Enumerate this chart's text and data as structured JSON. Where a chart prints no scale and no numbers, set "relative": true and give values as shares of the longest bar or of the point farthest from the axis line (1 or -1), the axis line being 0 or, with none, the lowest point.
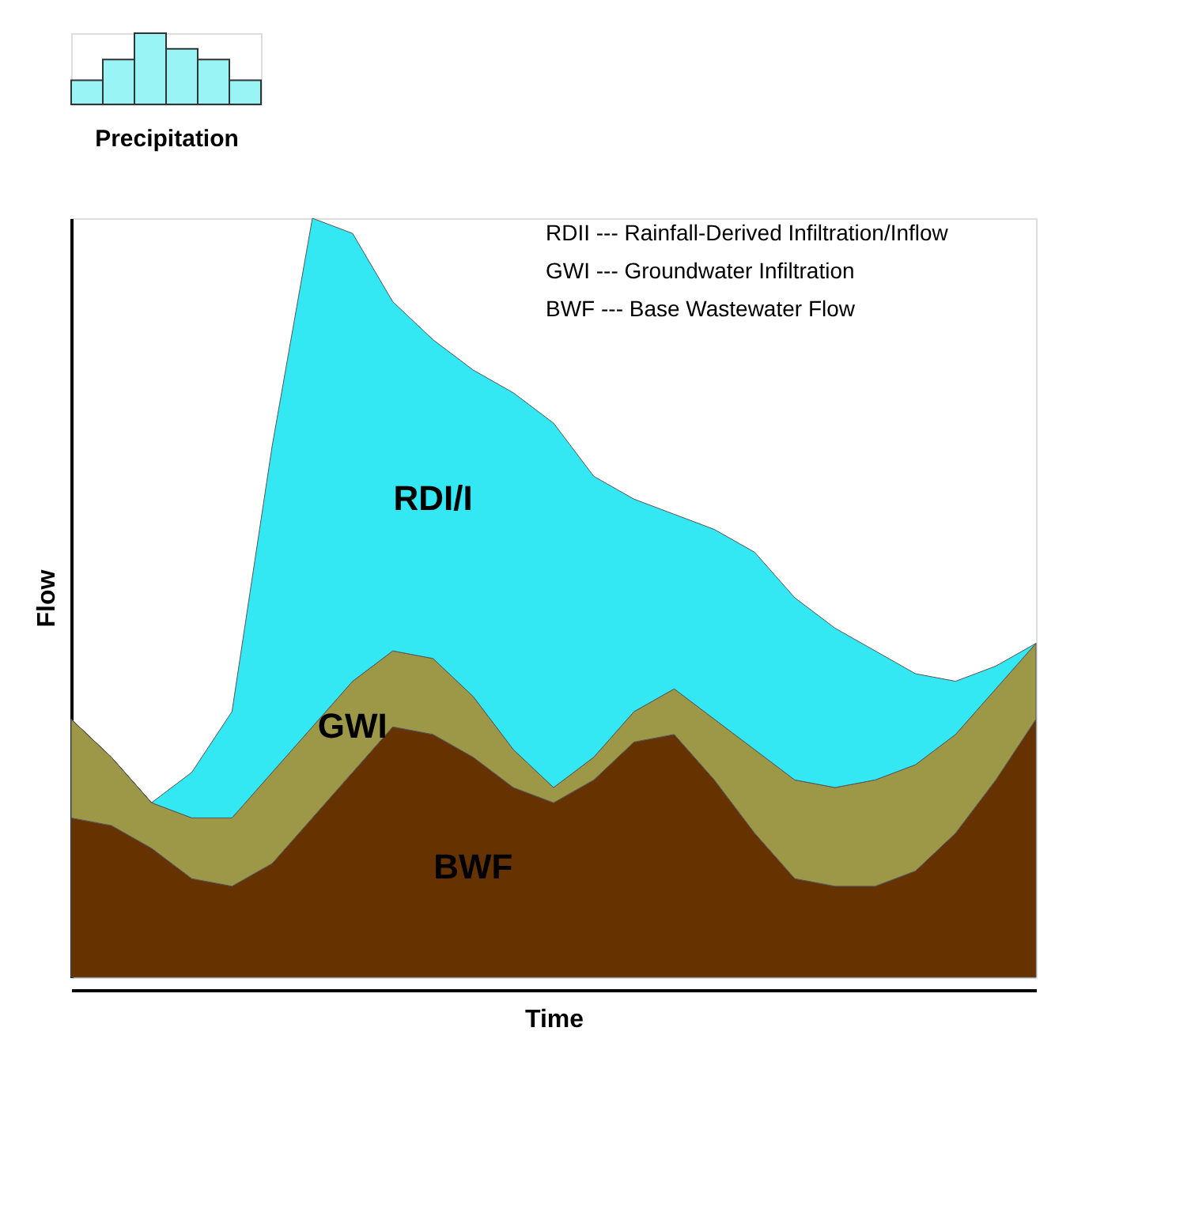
{
  "chart_data": [
    {
      "type": "bar",
      "relative": true,
      "xlabel": "Precipitation",
      "categories": [
        null,
        null,
        null,
        null,
        null,
        null
      ],
      "values": [
        0.34,
        0.63,
        1,
        0.78,
        0.63,
        0.34
      ],
      "color": "#99f5f5"
    },
    {
      "type": "area",
      "stacked": true,
      "relative": true,
      "xlabel": "Time",
      "ylabel": "Flow",
      "categories": [
        null,
        null,
        null,
        null,
        null,
        null,
        null,
        null,
        null,
        null,
        null,
        null,
        null,
        null,
        null,
        null,
        null,
        null,
        null,
        null,
        null,
        null,
        null,
        null,
        null
      ],
      "series": [
        {
          "name": "BWF",
          "color": "#663300",
          "values": [
            0.21,
            0.2,
            0.17,
            0.13,
            0.12,
            0.15,
            0.21,
            0.27,
            0.33,
            0.32,
            0.29,
            0.25,
            0.23,
            0.26,
            0.31,
            0.32,
            0.26,
            0.19,
            0.13,
            0.12,
            0.12,
            0.14,
            0.19,
            0.26,
            0.34
          ]
        },
        {
          "name": "GWI",
          "color": "#9c9848",
          "values": [
            0.13,
            0.09,
            0.06,
            0.08,
            0.09,
            0.12,
            0.12,
            0.12,
            0.1,
            0.1,
            0.08,
            0.05,
            0.02,
            0.03,
            0.04,
            0.06,
            0.08,
            0.11,
            0.13,
            0.13,
            0.14,
            0.14,
            0.13,
            0.12,
            0.1
          ]
        },
        {
          "name": "RDI/I",
          "color": "#33e8f2",
          "values": [
            0,
            0,
            0,
            0.06,
            0.14,
            0.43,
            0.67,
            0.59,
            0.46,
            0.42,
            0.43,
            0.47,
            0.48,
            0.37,
            0.28,
            0.23,
            0.25,
            0.26,
            0.24,
            0.21,
            0.17,
            0.12,
            0.07,
            0.03,
            0
          ]
        }
      ],
      "annotations": [
        "RDII --- Rainfall-Derived Infiltration/Inflow",
        "GWI --- Groundwater Infiltration",
        "BWF --- Base Wastewater Flow"
      ]
    }
  ]
}
